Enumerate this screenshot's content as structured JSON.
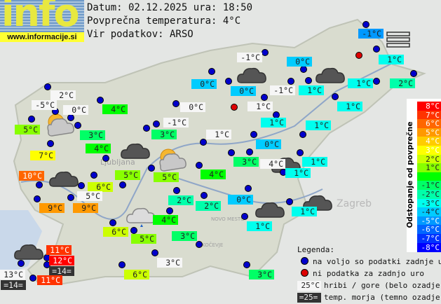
{
  "logo": {
    "word": "info",
    "url": "www.informacije.si"
  },
  "header": {
    "date_line": "Datum: 02.12.2025 ura: 18:50",
    "avg_line": "Povprečna temperatura: 4°C",
    "source_line": "Vir podatkov: ARSO"
  },
  "average_temperature": 4,
  "map_labels": {
    "ljubljana": "Ljubljana",
    "zagreb": "Zagreb",
    "novo_mesto": "NOVO MESTO",
    "kocevje": "KOČEVJE"
  },
  "stations": [
    {
      "value": "2°C",
      "kind": "mountain"
    },
    {
      "value": "-5°C",
      "kind": "mountain"
    },
    {
      "value": "0°C",
      "kind": "mountain"
    },
    {
      "value": "5°C",
      "kind": "valley"
    },
    {
      "value": "4°C",
      "kind": "valley"
    },
    {
      "value": "3°C",
      "kind": "valley"
    },
    {
      "value": "4°C",
      "kind": "valley"
    },
    {
      "value": "7°C",
      "kind": "valley"
    },
    {
      "value": "10°C",
      "kind": "valley"
    },
    {
      "value": "6°C",
      "kind": "valley"
    },
    {
      "value": "5°C",
      "kind": "mountain"
    },
    {
      "value": "9°C",
      "kind": "valley"
    },
    {
      "value": "9°C",
      "kind": "valley"
    },
    {
      "value": "5°C",
      "kind": "valley"
    },
    {
      "value": "0°C",
      "kind": "valley"
    },
    {
      "value": "0°C",
      "kind": "valley"
    },
    {
      "value": "-1°C",
      "kind": "mountain"
    },
    {
      "value": "0°C",
      "kind": "valley"
    },
    {
      "value": "-1°C",
      "kind": "mountain"
    },
    {
      "value": "1°C",
      "kind": "valley"
    },
    {
      "value": "-1°C",
      "kind": "valley"
    },
    {
      "value": "1°C",
      "kind": "valley"
    },
    {
      "value": "1°C",
      "kind": "valley"
    },
    {
      "value": "2°C",
      "kind": "valley"
    },
    {
      "value": "1°C",
      "kind": "valley"
    },
    {
      "value": "1°C",
      "kind": "mountain"
    },
    {
      "value": "0°C",
      "kind": "mountain"
    },
    {
      "value": "-1°C",
      "kind": "mountain"
    },
    {
      "value": "3°C",
      "kind": "valley"
    },
    {
      "value": "1°C",
      "kind": "mountain"
    },
    {
      "value": "1°C",
      "kind": "valley"
    },
    {
      "value": "1°C",
      "kind": "valley"
    },
    {
      "value": "0°C",
      "kind": "valley"
    },
    {
      "value": "3°C",
      "kind": "valley"
    },
    {
      "value": "4°C",
      "kind": "mountain"
    },
    {
      "value": "1°C",
      "kind": "valley"
    },
    {
      "value": "1°C",
      "kind": "valley"
    },
    {
      "value": "4°C",
      "kind": "valley"
    },
    {
      "value": "5°C",
      "kind": "valley"
    },
    {
      "value": "2°C",
      "kind": "valley"
    },
    {
      "value": "2°C",
      "kind": "valley"
    },
    {
      "value": "0°C",
      "kind": "valley"
    },
    {
      "value": "1°C",
      "kind": "valley"
    },
    {
      "value": "1°C",
      "kind": "valley"
    },
    {
      "value": "4°C",
      "kind": "valley"
    },
    {
      "value": "6°C",
      "kind": "valley"
    },
    {
      "value": "5°C",
      "kind": "valley"
    },
    {
      "value": "3°C",
      "kind": "valley"
    },
    {
      "value": "3°C",
      "kind": "mountain"
    },
    {
      "value": "6°C",
      "kind": "valley"
    },
    {
      "value": "3°C",
      "kind": "valley"
    },
    {
      "value": "11°C",
      "kind": "valley"
    },
    {
      "value": "12°C",
      "kind": "valley"
    },
    {
      "value": "=14=",
      "kind": "sea"
    },
    {
      "value": "13°C",
      "kind": "mountain"
    },
    {
      "value": "=14=",
      "kind": "sea"
    },
    {
      "value": "11°C",
      "kind": "valley"
    }
  ],
  "no_data_stations": 2,
  "weather_icons": [
    "sun-cloud",
    "dark-cloud",
    "sun-cloud",
    "dark-cloud",
    "light-cloud-rain",
    "dark-cloud",
    "dark-cloud",
    "dark-cloud",
    "dark-cloud",
    "dark-cloud",
    "dark-cloud",
    "fog"
  ],
  "scale": {
    "title": "Odstopanje od povprečne temperature:",
    "rows": [
      {
        "label": "8°C",
        "color": "#ff0000"
      },
      {
        "label": "7°C",
        "color": "#ff3300"
      },
      {
        "label": "6°C",
        "color": "#ff6600"
      },
      {
        "label": "5°C",
        "color": "#ff9900"
      },
      {
        "label": "4°C",
        "color": "#ffcc00"
      },
      {
        "label": "3°C",
        "color": "#ffff00"
      },
      {
        "label": "2°C",
        "color": "#ccff00"
      },
      {
        "label": "1°C",
        "color": "#88ff00"
      },
      {
        "label": "",
        "color": "#00ff00"
      },
      {
        "label": "-1°C",
        "color": "#00ff66"
      },
      {
        "label": "-2°C",
        "color": "#00ffaa"
      },
      {
        "label": "-3°C",
        "color": "#00ffee"
      },
      {
        "label": "-4°C",
        "color": "#00ccff"
      },
      {
        "label": "-5°C",
        "color": "#0099ff"
      },
      {
        "label": "-6°C",
        "color": "#0066ff"
      },
      {
        "label": "-7°C",
        "color": "#0033ff"
      },
      {
        "label": "-8°C",
        "color": "#0000ff"
      }
    ]
  },
  "legend": {
    "title": "Legenda:",
    "available": "na voljo so podatki zadnje ure",
    "no_data": "ni podatka za zadnjo uro",
    "mountain_sample": "25°C",
    "mountain_text": "hribi / gore (belo ozadje)",
    "sea_sample": "=25=",
    "sea_text": "temp. morja (temno ozadje)",
    "available_color": "#0000cc",
    "no_data_color": "#dd0000"
  }
}
